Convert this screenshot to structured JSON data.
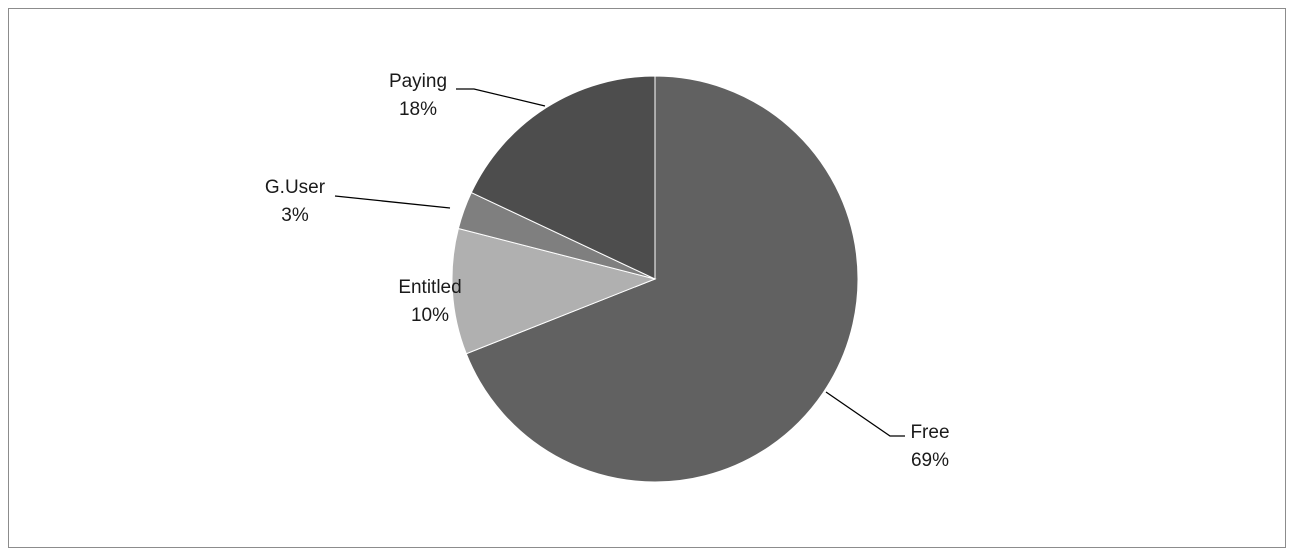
{
  "chart_data": {
    "type": "pie",
    "title": "",
    "slices": [
      {
        "name": "Free",
        "value": 69,
        "label": "69%",
        "color": "#616161"
      },
      {
        "name": "Entitled",
        "value": 10,
        "label": "10%",
        "color": "#b0b0b0"
      },
      {
        "name": "G.User",
        "value": 3,
        "label": "3%",
        "color": "#7f7f7f"
      },
      {
        "name": "Paying",
        "value": 18,
        "label": "18%",
        "color": "#4d4d4d"
      }
    ],
    "start_angle_deg": 0,
    "direction": "clockwise",
    "slice_border_color": "#ffffff",
    "leader_line_color": "#000000",
    "legend": "none"
  }
}
